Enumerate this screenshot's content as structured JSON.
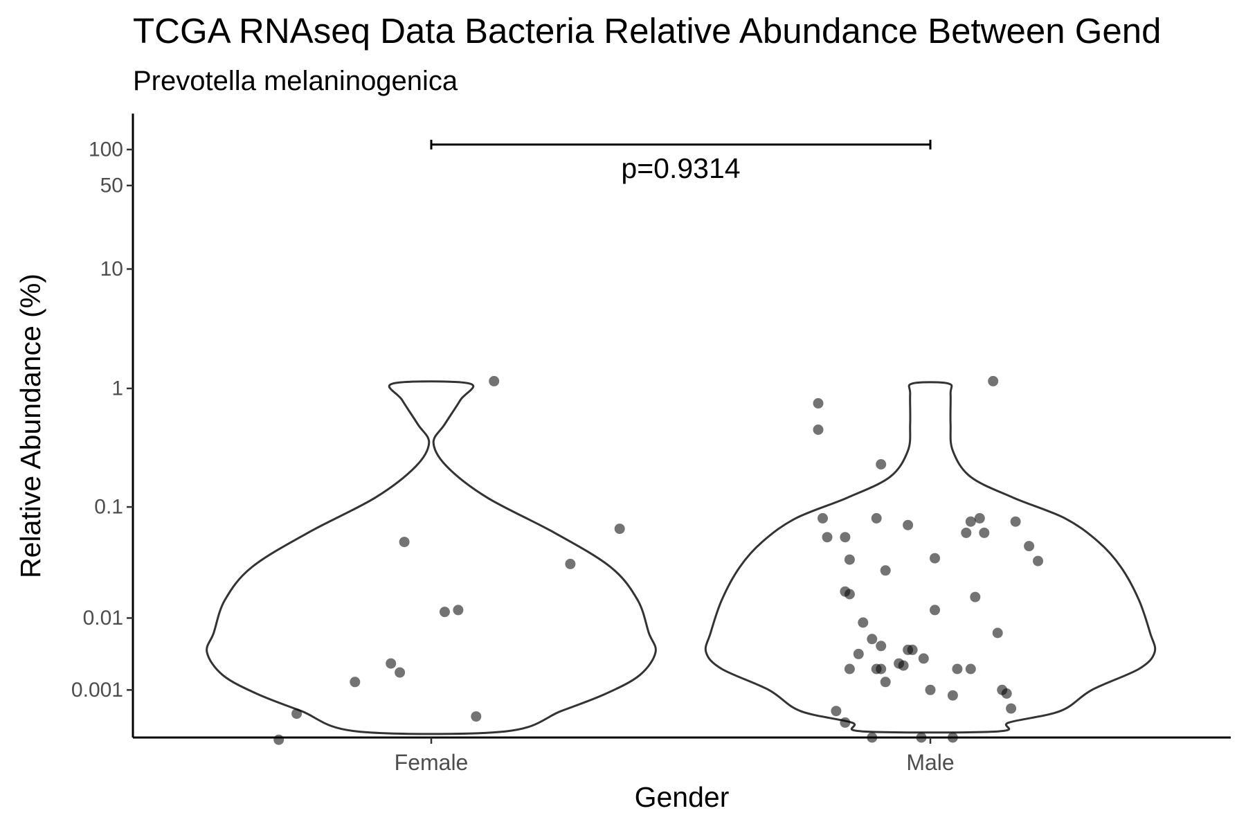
{
  "chart_data": {
    "type": "violin",
    "title": "TCGA RNAseq Data Bacteria Relative Abundance Between Gend",
    "subtitle": "Prevotella melaninogenica",
    "xlabel": "Gender",
    "ylabel": "Relative Abundance (%)",
    "categories": [
      "Female",
      "Male"
    ],
    "yticks": [
      {
        "value": 100,
        "label": "100"
      },
      {
        "value": 50,
        "label": "50"
      },
      {
        "value": 10,
        "label": "10"
      },
      {
        "value": 1,
        "label": "1"
      },
      {
        "value": 0.1,
        "label": "0.1"
      },
      {
        "value": 0.01,
        "label": "0.01"
      },
      {
        "value": 0.001,
        "label": "0.001"
      }
    ],
    "y_scale": "log10(y + 0.002)",
    "y_offset": 0.002,
    "ylim": [
      -0.0008,
      200
    ],
    "violins": [
      {
        "category": "Female",
        "profile": [
          [
            1.1,
            0.17
          ],
          [
            0.8,
            0.13
          ],
          [
            0.5,
            0.06
          ],
          [
            0.35,
            0.01
          ],
          [
            0.22,
            0.07
          ],
          [
            0.12,
            0.25
          ],
          [
            0.06,
            0.55
          ],
          [
            0.03,
            0.8
          ],
          [
            0.015,
            0.92
          ],
          [
            0.007,
            0.97
          ],
          [
            0.0042,
            1.0
          ],
          [
            0.002,
            0.93
          ],
          [
            0.0008,
            0.78
          ],
          [
            0.0,
            0.58
          ],
          [
            -0.00065,
            0.33
          ]
        ]
      },
      {
        "category": "Male",
        "profile": [
          [
            1.1,
            0.08
          ],
          [
            0.9,
            0.09
          ],
          [
            0.5,
            0.09
          ],
          [
            0.3,
            0.1
          ],
          [
            0.18,
            0.18
          ],
          [
            0.12,
            0.37
          ],
          [
            0.08,
            0.6
          ],
          [
            0.05,
            0.75
          ],
          [
            0.03,
            0.85
          ],
          [
            0.015,
            0.93
          ],
          [
            0.007,
            0.98
          ],
          [
            0.0042,
            1.0
          ],
          [
            0.0025,
            0.93
          ],
          [
            0.001,
            0.72
          ],
          [
            0.0,
            0.58
          ],
          [
            -0.0004,
            0.35
          ],
          [
            -0.00065,
            0.3
          ]
        ]
      }
    ],
    "points": [
      {
        "category": "Female",
        "jitter": 0.14,
        "y": 1.15
      },
      {
        "category": "Female",
        "jitter": 0.42,
        "y": 0.065
      },
      {
        "category": "Female",
        "jitter": 0.31,
        "y": 0.032
      },
      {
        "category": "Female",
        "jitter": -0.06,
        "y": 0.05
      },
      {
        "category": "Female",
        "jitter": 0.03,
        "y": 0.0115
      },
      {
        "category": "Female",
        "jitter": 0.06,
        "y": 0.012
      },
      {
        "category": "Female",
        "jitter": -0.09,
        "y": 0.003
      },
      {
        "category": "Female",
        "jitter": -0.07,
        "y": 0.0022
      },
      {
        "category": "Female",
        "jitter": -0.17,
        "y": 0.0015
      },
      {
        "category": "Female",
        "jitter": 0.1,
        "y": -0.0002
      },
      {
        "category": "Female",
        "jitter": -0.3,
        "y": -0.0001
      },
      {
        "category": "Female",
        "jitter": -0.34,
        "y": -0.00085
      },
      {
        "category": "Male",
        "jitter": 0.14,
        "y": 1.15
      },
      {
        "category": "Male",
        "jitter": -0.25,
        "y": 0.75
      },
      {
        "category": "Male",
        "jitter": -0.25,
        "y": 0.45
      },
      {
        "category": "Male",
        "jitter": -0.11,
        "y": 0.23
      },
      {
        "category": "Male",
        "jitter": -0.24,
        "y": 0.08
      },
      {
        "category": "Male",
        "jitter": -0.12,
        "y": 0.08
      },
      {
        "category": "Male",
        "jitter": -0.05,
        "y": 0.07
      },
      {
        "category": "Male",
        "jitter": 0.09,
        "y": 0.075
      },
      {
        "category": "Male",
        "jitter": 0.11,
        "y": 0.08
      },
      {
        "category": "Male",
        "jitter": 0.19,
        "y": 0.075
      },
      {
        "category": "Male",
        "jitter": 0.08,
        "y": 0.06
      },
      {
        "category": "Male",
        "jitter": 0.12,
        "y": 0.06
      },
      {
        "category": "Male",
        "jitter": -0.23,
        "y": 0.055
      },
      {
        "category": "Male",
        "jitter": -0.19,
        "y": 0.055
      },
      {
        "category": "Male",
        "jitter": 0.22,
        "y": 0.046
      },
      {
        "category": "Male",
        "jitter": 0.24,
        "y": 0.034
      },
      {
        "category": "Male",
        "jitter": -0.18,
        "y": 0.035
      },
      {
        "category": "Male",
        "jitter": 0.01,
        "y": 0.036
      },
      {
        "category": "Male",
        "jitter": -0.1,
        "y": 0.028
      },
      {
        "category": "Male",
        "jitter": -0.19,
        "y": 0.018
      },
      {
        "category": "Male",
        "jitter": -0.18,
        "y": 0.017
      },
      {
        "category": "Male",
        "jitter": 0.1,
        "y": 0.016
      },
      {
        "category": "Male",
        "jitter": 0.01,
        "y": 0.012
      },
      {
        "category": "Male",
        "jitter": -0.15,
        "y": 0.009
      },
      {
        "category": "Male",
        "jitter": 0.15,
        "y": 0.007
      },
      {
        "category": "Male",
        "jitter": -0.13,
        "y": 0.006
      },
      {
        "category": "Male",
        "jitter": -0.11,
        "y": 0.005
      },
      {
        "category": "Male",
        "jitter": -0.16,
        "y": 0.004
      },
      {
        "category": "Male",
        "jitter": -0.05,
        "y": 0.0045
      },
      {
        "category": "Male",
        "jitter": -0.04,
        "y": 0.0045
      },
      {
        "category": "Male",
        "jitter": -0.015,
        "y": 0.0035
      },
      {
        "category": "Male",
        "jitter": -0.07,
        "y": 0.003
      },
      {
        "category": "Male",
        "jitter": -0.06,
        "y": 0.0028
      },
      {
        "category": "Male",
        "jitter": -0.12,
        "y": 0.0025
      },
      {
        "category": "Male",
        "jitter": -0.11,
        "y": 0.0025
      },
      {
        "category": "Male",
        "jitter": 0.09,
        "y": 0.0025
      },
      {
        "category": "Male",
        "jitter": 0.06,
        "y": 0.0025
      },
      {
        "category": "Male",
        "jitter": -0.18,
        "y": 0.0025
      },
      {
        "category": "Male",
        "jitter": -0.1,
        "y": 0.0015
      },
      {
        "category": "Male",
        "jitter": 0.0,
        "y": 0.001
      },
      {
        "category": "Male",
        "jitter": 0.05,
        "y": 0.0007
      },
      {
        "category": "Male",
        "jitter": 0.16,
        "y": 0.001
      },
      {
        "category": "Male",
        "jitter": 0.17,
        "y": 0.0008
      },
      {
        "category": "Male",
        "jitter": 0.18,
        "y": 0.0001
      },
      {
        "category": "Male",
        "jitter": -0.21,
        "y": 0.0
      },
      {
        "category": "Male",
        "jitter": -0.19,
        "y": -0.0004
      },
      {
        "category": "Male",
        "jitter": -0.13,
        "y": -0.0008
      },
      {
        "category": "Male",
        "jitter": -0.02,
        "y": -0.0008
      },
      {
        "category": "Male",
        "jitter": 0.05,
        "y": -0.0008
      }
    ],
    "comparison": {
      "groups": [
        "Female",
        "Male"
      ],
      "y": 110,
      "label": "p=0.9314"
    }
  }
}
